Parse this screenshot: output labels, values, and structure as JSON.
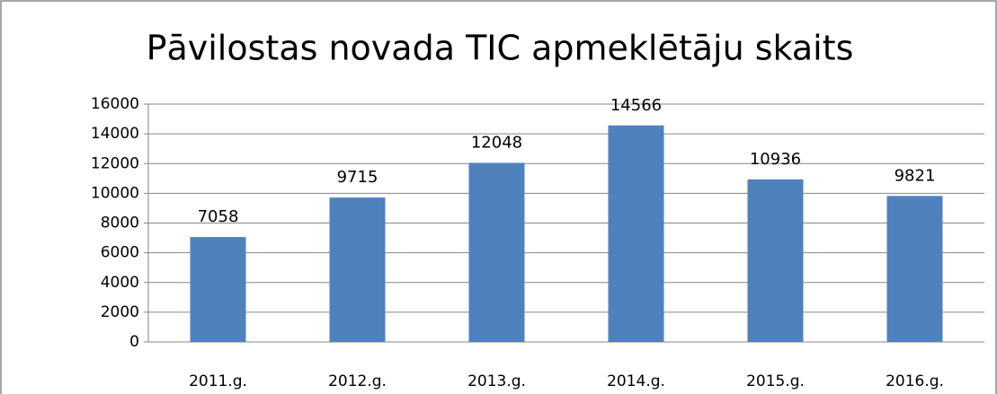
{
  "chart_data": {
    "type": "bar",
    "title": "Pāvilostas novada TIC apmeklētāju skaits",
    "categories": [
      "2011.g.",
      "2012.g.",
      "2013.g.",
      "2014.g.",
      "2015.g.",
      "2016.g."
    ],
    "values": [
      7058,
      9715,
      12048,
      14566,
      10936,
      9821
    ],
    "color": "#4f81bd",
    "ylim": [
      0,
      16000
    ],
    "yticks": [
      0,
      2000,
      4000,
      6000,
      8000,
      10000,
      12000,
      14000,
      16000
    ],
    "grid": true
  }
}
